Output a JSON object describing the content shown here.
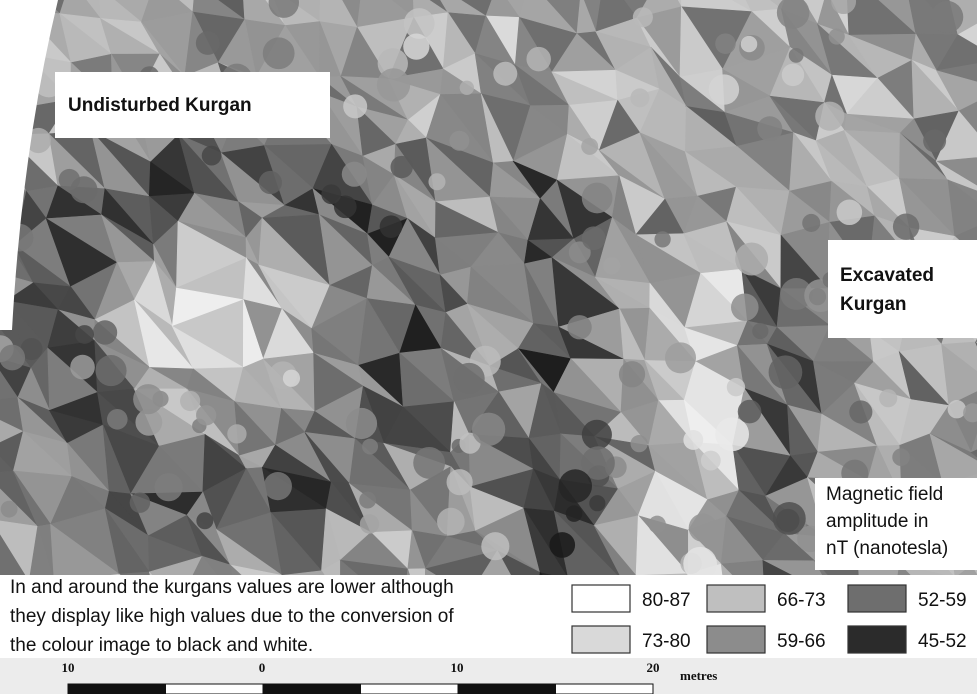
{
  "labels": {
    "undisturbed": "Undisturbed Kurgan",
    "excavated": [
      "Excavated",
      "Kurgan"
    ],
    "legend_title": [
      "Magnetic field",
      "amplitude in",
      "nT (nanotesla)"
    ]
  },
  "caption": [
    "In and around the kurgans values are lower although",
    "they display like high values due to the conversion of",
    "the colour image to black and white."
  ],
  "legend": [
    {
      "label": "80-87",
      "color": "#ffffff"
    },
    {
      "label": "73-80",
      "color": "#d9d9d9"
    },
    {
      "label": "66-73",
      "color": "#bfbfbf"
    },
    {
      "label": "59-66",
      "color": "#8c8c8c"
    },
    {
      "label": "52-59",
      "color": "#6e6e6e"
    },
    {
      "label": "45-52",
      "color": "#2b2b2b"
    }
  ],
  "scale_bar": {
    "ticks": [
      "10",
      "0",
      "10",
      "20"
    ],
    "unit": "metres"
  }
}
